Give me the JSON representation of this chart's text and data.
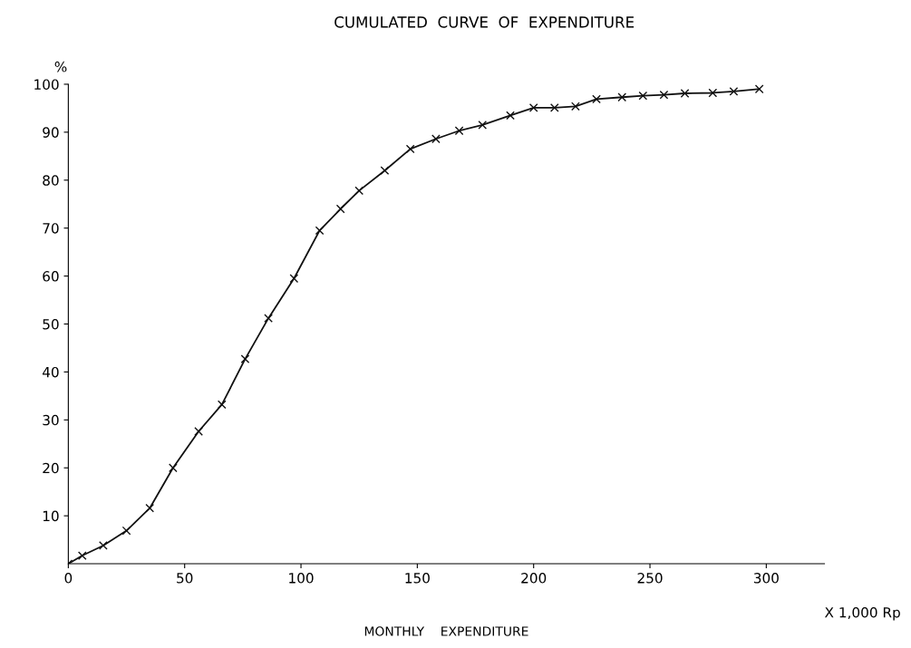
{
  "chart_data": {
    "type": "line",
    "title": "CUMULATED  CURVE  OF  EXPENDITURE",
    "xlabel": "MONTHLY    EXPENDITURE",
    "ylabel": "%",
    "annotations": [
      "X 1,000 Rp"
    ],
    "x": [
      0,
      6,
      15,
      25,
      35,
      45,
      56,
      66,
      76,
      86,
      97,
      108,
      117,
      125,
      136,
      147,
      158,
      168,
      178,
      190,
      200,
      209,
      218,
      227,
      238,
      247,
      256,
      265,
      277,
      286,
      297
    ],
    "series": [
      {
        "color": "#111111",
        "values": [
          0,
          1.7,
          3.8,
          6.9,
          11.6,
          20,
          27.6,
          33.2,
          42.7,
          51.2,
          59.5,
          69.5,
          74,
          77.8,
          82,
          86.5,
          88.6,
          90.3,
          91.5,
          93.5,
          95.1,
          95.1,
          95.4,
          96.9,
          97.3,
          97.6,
          97.8,
          98.1,
          98.2,
          98.5,
          99
        ]
      }
    ],
    "xlim": [
      0,
      325
    ],
    "ylim": [
      0,
      100
    ],
    "xticks": [
      0,
      50,
      100,
      150,
      200,
      250,
      300
    ],
    "yticks": [
      10,
      20,
      30,
      40,
      50,
      60,
      70,
      80,
      90,
      100
    ],
    "marker": "cross",
    "line_style": "solid",
    "grid": false,
    "legend": false
  }
}
